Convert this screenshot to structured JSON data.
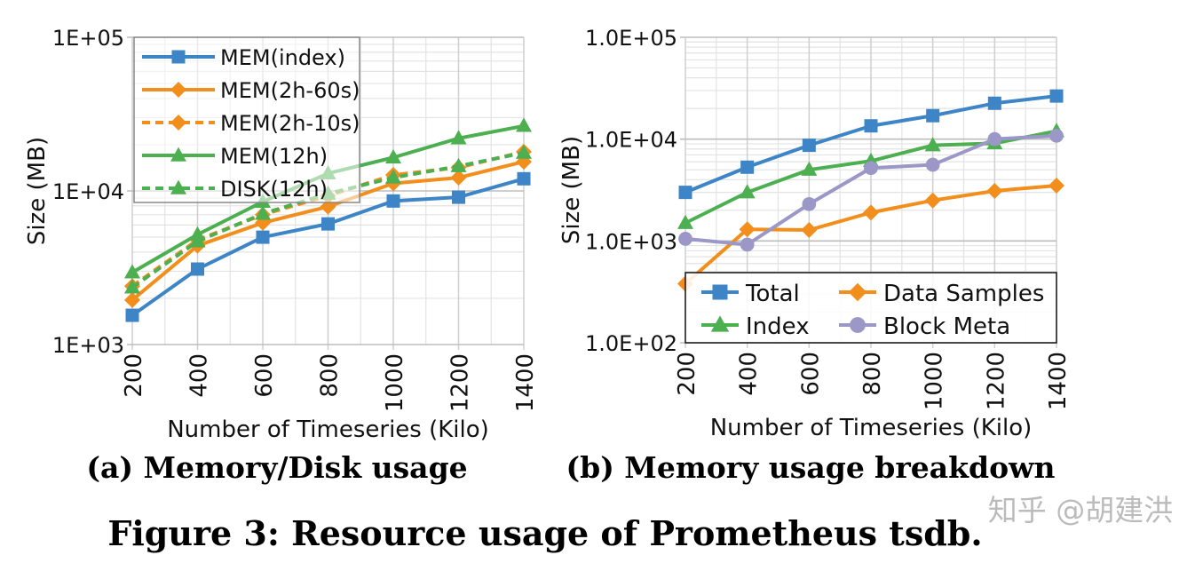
{
  "chart_data": [
    {
      "type": "line",
      "caption": "(a)  Memory/Disk usage",
      "xlabel": "Number of Timeseries (Kilo)",
      "ylabel": "Size (MB)",
      "yscale": "log",
      "ylim": [
        1000,
        100000
      ],
      "yticks": [
        1000,
        10000,
        100000
      ],
      "ytick_labels": [
        "1E+03",
        "1E+04",
        "1E+05"
      ],
      "x": [
        200,
        400,
        600,
        800,
        1000,
        1200,
        1400
      ],
      "xtick_labels": [
        "200",
        "400",
        "600",
        "800",
        "1000",
        "1200",
        "1400"
      ],
      "grid": true,
      "legend_position": "top-left",
      "series": [
        {
          "name": "MEM(index)",
          "color": "#3d85c6",
          "marker": "square",
          "dash": false,
          "values": [
            1550,
            3100,
            5000,
            6100,
            8600,
            9100,
            12000
          ]
        },
        {
          "name": "MEM(2h-60s)",
          "color": "#f28e1c",
          "marker": "diamond",
          "dash": false,
          "values": [
            1950,
            4400,
            6200,
            7900,
            11200,
            12200,
            15500
          ]
        },
        {
          "name": "MEM(2h-10s)",
          "color": "#f28e1c",
          "marker": "diamond",
          "dash": true,
          "values": [
            2400,
            4800,
            7000,
            9300,
            12700,
            14200,
            18000
          ]
        },
        {
          "name": "MEM(12h)",
          "color": "#4caf50",
          "marker": "triangle",
          "dash": false,
          "values": [
            2950,
            5200,
            8500,
            13000,
            16500,
            22000,
            26500
          ]
        },
        {
          "name": "DISK(12h)",
          "color": "#4caf50",
          "marker": "triangle",
          "dash": true,
          "values": [
            2350,
            4700,
            7100,
            9600,
            12200,
            14500,
            17700
          ]
        }
      ]
    },
    {
      "type": "line",
      "caption": "(b)  Memory usage breakdown",
      "xlabel": "Number of Timeseries (Kilo)",
      "ylabel": "Size (MB)",
      "yscale": "log",
      "ylim": [
        100,
        100000
      ],
      "yticks": [
        100,
        1000,
        10000,
        100000
      ],
      "ytick_labels": [
        "1.0E+02",
        "1.0E+03",
        "1.0E+04",
        "1.0E+05"
      ],
      "x": [
        200,
        400,
        600,
        800,
        1000,
        1200,
        1400
      ],
      "xtick_labels": [
        "200",
        "400",
        "600",
        "800",
        "1000",
        "1200",
        "1400"
      ],
      "grid": true,
      "legend_position": "bottom",
      "series": [
        {
          "name": "Total",
          "color": "#3d85c6",
          "marker": "square",
          "dash": false,
          "values": [
            3000,
            5300,
            8700,
            13500,
            17000,
            22500,
            26500
          ]
        },
        {
          "name": "Data Samples",
          "color": "#f28e1c",
          "marker": "diamond",
          "dash": false,
          "values": [
            380,
            1300,
            1280,
            1900,
            2500,
            3100,
            3500
          ]
        },
        {
          "name": "Index",
          "color": "#4caf50",
          "marker": "triangle",
          "dash": false,
          "values": [
            1500,
            3000,
            5000,
            6100,
            8700,
            9100,
            12000
          ]
        },
        {
          "name": "Block Meta",
          "color": "#9b97c6",
          "marker": "circle",
          "dash": false,
          "values": [
            1050,
            920,
            2300,
            5200,
            5600,
            10000,
            10800
          ]
        }
      ]
    }
  ],
  "figure_caption": "Figure 3:  Resource usage of Prometheus tsdb.",
  "watermark": "知乎 @胡建洪"
}
